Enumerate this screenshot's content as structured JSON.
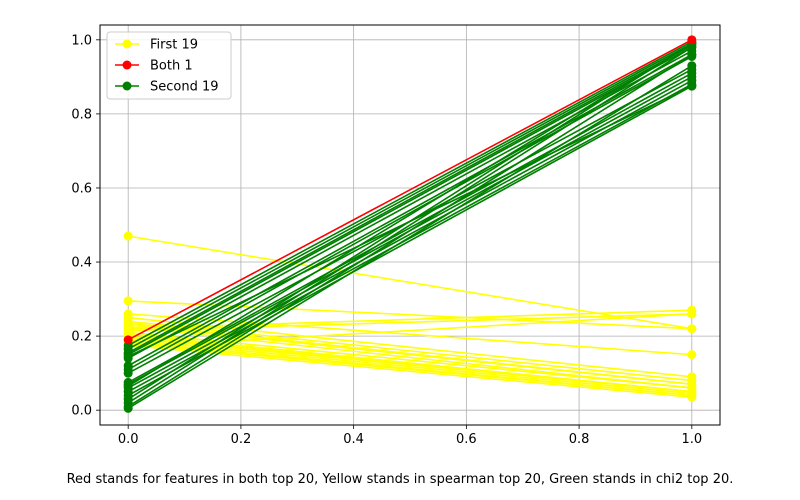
{
  "chart_data": {
    "type": "line",
    "xlim": [
      -0.05,
      1.05
    ],
    "ylim": [
      -0.04,
      1.04
    ],
    "xticks": [
      "0.0",
      "0.2",
      "0.4",
      "0.6",
      "0.8",
      "1.0"
    ],
    "xtick_values": [
      0,
      0.2,
      0.4,
      0.6,
      0.8,
      1.0
    ],
    "yticks": [
      "0.0",
      "0.2",
      "0.4",
      "0.6",
      "0.8",
      "1.0"
    ],
    "ytick_values": [
      0,
      0.2,
      0.4,
      0.6,
      0.8,
      1.0
    ],
    "grid": true,
    "legend_position": "top-left",
    "caption": "Red stands for features in both top 20, Yellow stands in spearman top 20, Green stands in chi2 top 20.",
    "series": [
      {
        "name": "First 19",
        "color": "#ffff00",
        "segments": [
          [
            0.47,
            0.22
          ],
          [
            0.295,
            0.22
          ],
          [
            0.26,
            0.15
          ],
          [
            0.25,
            0.09
          ],
          [
            0.24,
            0.08
          ],
          [
            0.235,
            0.07
          ],
          [
            0.23,
            0.07
          ],
          [
            0.225,
            0.06
          ],
          [
            0.22,
            0.27
          ],
          [
            0.215,
            0.26
          ],
          [
            0.21,
            0.06
          ],
          [
            0.205,
            0.05
          ],
          [
            0.2,
            0.05
          ],
          [
            0.195,
            0.05
          ],
          [
            0.19,
            0.045
          ],
          [
            0.185,
            0.04
          ],
          [
            0.18,
            0.04
          ],
          [
            0.175,
            0.035
          ],
          [
            0.17,
            0.26
          ]
        ]
      },
      {
        "name": "Both 1",
        "color": "#ff0000",
        "segments": [
          [
            0.19,
            1.0
          ]
        ]
      },
      {
        "name": "Second 19",
        "color": "#008000",
        "segments": [
          [
            0.175,
            0.995
          ],
          [
            0.165,
            0.99
          ],
          [
            0.155,
            0.985
          ],
          [
            0.15,
            0.98
          ],
          [
            0.14,
            0.97
          ],
          [
            0.12,
            0.96
          ],
          [
            0.11,
            0.955
          ],
          [
            0.1,
            0.92
          ],
          [
            0.075,
            0.91
          ],
          [
            0.07,
            0.9
          ],
          [
            0.06,
            0.89
          ],
          [
            0.05,
            0.88
          ],
          [
            0.04,
            0.875
          ],
          [
            0.03,
            0.99
          ],
          [
            0.02,
            0.98
          ],
          [
            0.01,
            0.96
          ],
          [
            0.005,
            0.93
          ],
          [
            0.145,
            0.875
          ],
          [
            0.065,
            0.99
          ]
        ]
      }
    ]
  }
}
